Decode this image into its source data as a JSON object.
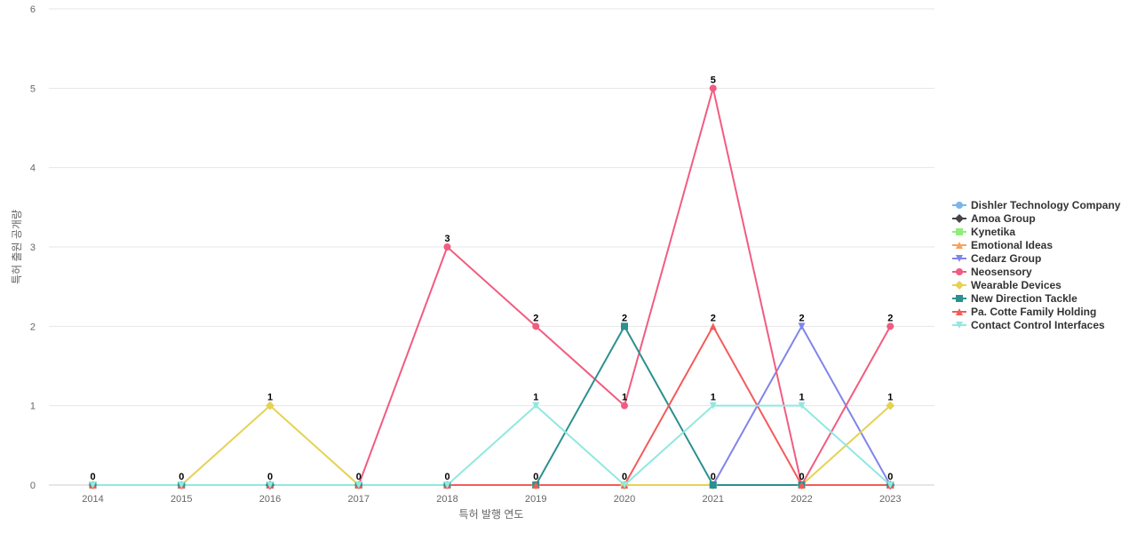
{
  "chart_data": {
    "type": "line",
    "xlabel": "특허 발행 연도",
    "ylabel": "특허 출원 공개량",
    "ylim": [
      0,
      6
    ],
    "yticks": [
      0,
      1,
      2,
      3,
      4,
      5,
      6
    ],
    "categories": [
      "2014",
      "2015",
      "2016",
      "2017",
      "2018",
      "2019",
      "2020",
      "2021",
      "2022",
      "2023"
    ],
    "grid": true,
    "legend_position": "right",
    "series": [
      {
        "name": "Dishler Technology Company",
        "color": "#7cb5ec",
        "marker": "circle",
        "values": [
          0,
          0,
          0,
          0,
          0,
          0,
          0,
          0,
          0,
          0
        ]
      },
      {
        "name": "Amoa Group",
        "color": "#434348",
        "marker": "diamond",
        "values": [
          0,
          0,
          0,
          0,
          0,
          0,
          0,
          0,
          0,
          0
        ]
      },
      {
        "name": "Kynetika",
        "color": "#90ed7d",
        "marker": "square",
        "values": [
          0,
          0,
          0,
          0,
          0,
          0,
          0,
          0,
          0,
          0
        ]
      },
      {
        "name": "Emotional Ideas",
        "color": "#f7a35c",
        "marker": "triangle",
        "values": [
          0,
          0,
          0,
          0,
          0,
          0,
          0,
          0,
          0,
          0
        ]
      },
      {
        "name": "Cedarz Group",
        "color": "#8085e9",
        "marker": "triangle-down",
        "values": [
          0,
          0,
          0,
          0,
          0,
          0,
          0,
          0,
          2,
          0
        ]
      },
      {
        "name": "Neosensory",
        "color": "#f15c80",
        "marker": "circle",
        "values": [
          0,
          0,
          0,
          0,
          3,
          2,
          1,
          5,
          0,
          2
        ]
      },
      {
        "name": "Wearable Devices",
        "color": "#e4d354",
        "marker": "diamond",
        "values": [
          0,
          0,
          1,
          0,
          0,
          0,
          0,
          0,
          0,
          1
        ]
      },
      {
        "name": "New Direction Tackle",
        "color": "#2b908f",
        "marker": "square",
        "values": [
          0,
          0,
          0,
          0,
          0,
          0,
          2,
          0,
          0,
          0
        ]
      },
      {
        "name": "Pa. Cotte Family Holding",
        "color": "#f45b5b",
        "marker": "triangle",
        "values": [
          0,
          0,
          0,
          0,
          0,
          0,
          0,
          2,
          0,
          0
        ]
      },
      {
        "name": "Contact Control Interfaces",
        "color": "#91e8e1",
        "marker": "triangle-down",
        "values": [
          0,
          0,
          0,
          0,
          0,
          1,
          0,
          1,
          1,
          0
        ]
      }
    ],
    "data_labels": [
      {
        "category": "2014",
        "text": "0",
        "value": 0
      },
      {
        "category": "2015",
        "text": "0",
        "value": 0
      },
      {
        "category": "2016",
        "text": "1",
        "value": 1
      },
      {
        "category": "2016",
        "text": "0",
        "value": 0
      },
      {
        "category": "2017",
        "text": "0",
        "value": 0
      },
      {
        "category": "2018",
        "text": "3",
        "value": 3
      },
      {
        "category": "2018",
        "text": "0",
        "value": 0
      },
      {
        "category": "2019",
        "text": "2",
        "value": 2
      },
      {
        "category": "2019",
        "text": "1",
        "value": 1
      },
      {
        "category": "2019",
        "text": "0",
        "value": 0
      },
      {
        "category": "2020",
        "text": "2",
        "value": 2
      },
      {
        "category": "2020",
        "text": "1",
        "value": 1
      },
      {
        "category": "2020",
        "text": "0",
        "value": 0
      },
      {
        "category": "2021",
        "text": "5",
        "value": 5
      },
      {
        "category": "2021",
        "text": "2",
        "value": 2
      },
      {
        "category": "2021",
        "text": "1",
        "value": 1
      },
      {
        "category": "2021",
        "text": "0",
        "value": 0
      },
      {
        "category": "2022",
        "text": "2",
        "value": 2
      },
      {
        "category": "2022",
        "text": "1",
        "value": 1
      },
      {
        "category": "2022",
        "text": "0",
        "value": 0
      },
      {
        "category": "2023",
        "text": "2",
        "value": 2
      },
      {
        "category": "2023",
        "text": "1",
        "value": 1
      },
      {
        "category": "2023",
        "text": "0",
        "value": 0
      }
    ]
  }
}
